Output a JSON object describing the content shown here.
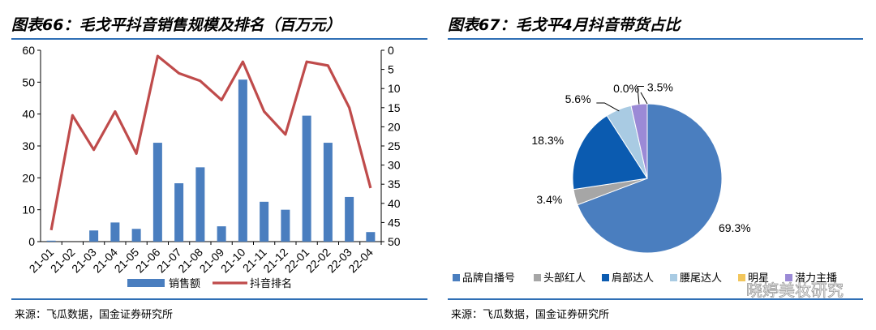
{
  "left": {
    "title": "图表66：毛戈平抖音销售规模及排名（百万元）",
    "source": "来源：飞瓜数据，国金证券研究所"
  },
  "right": {
    "title": "图表67：毛戈平4月抖音带货占比",
    "source": "来源：飞瓜数据，国金证券研究所",
    "watermark": "晓婷美妆研究"
  },
  "colors": {
    "bar": "#4a7ebf",
    "line": "#bf4b4b",
    "rule": "#2f6fb5",
    "pie": [
      "#4a7ebf",
      "#a6a6a6",
      "#0b5bb0",
      "#a9cbe3",
      "#f2c65c",
      "#9b8ad6"
    ]
  },
  "chart_data": [
    {
      "type": "bar+line",
      "categories": [
        "21-01",
        "21-02",
        "21-03",
        "21-04",
        "21-05",
        "21-06",
        "21-07",
        "21-08",
        "21-09",
        "21-10",
        "21-11",
        "21-12",
        "22-01",
        "22-02",
        "22-03",
        "22-04"
      ],
      "series": [
        {
          "name": "销售额",
          "type": "bar",
          "axis": "left",
          "values": [
            0.3,
            0,
            3.5,
            6,
            4,
            31,
            18.3,
            23.3,
            4.8,
            50.8,
            12.5,
            10,
            39.5,
            31,
            14,
            3
          ]
        },
        {
          "name": "抖音排名",
          "type": "line",
          "axis": "right",
          "values": [
            47,
            17,
            26,
            16,
            27,
            1.5,
            6,
            8,
            13,
            3,
            16,
            22,
            3,
            4,
            15,
            36
          ]
        }
      ],
      "y_left": {
        "min": 0,
        "max": 60,
        "ticks": [
          "0",
          "10",
          "20",
          "30",
          "40",
          "50",
          "60"
        ]
      },
      "y_right": {
        "min": 0,
        "max": 50,
        "inverted": true,
        "ticks": [
          "0",
          "5",
          "10",
          "15",
          "20",
          "25",
          "30",
          "35",
          "40",
          "45",
          "50"
        ]
      },
      "legend": {
        "position": "bottom"
      },
      "grid": false
    },
    {
      "type": "pie",
      "slices": [
        {
          "label": "品牌自播号",
          "value": 69.3,
          "pct_label": "69.3%"
        },
        {
          "label": "头部红人",
          "value": 3.4,
          "pct_label": "3.4%"
        },
        {
          "label": "肩部达人",
          "value": 18.3,
          "pct_label": "18.3%"
        },
        {
          "label": "腰尾达人",
          "value": 5.6,
          "pct_label": "5.6%"
        },
        {
          "label": "明星",
          "value": 0.0,
          "pct_label": "0.0%"
        },
        {
          "label": "潜力主播",
          "value": 3.5,
          "pct_label": "3.5%"
        }
      ],
      "legend": {
        "position": "bottom"
      }
    }
  ]
}
